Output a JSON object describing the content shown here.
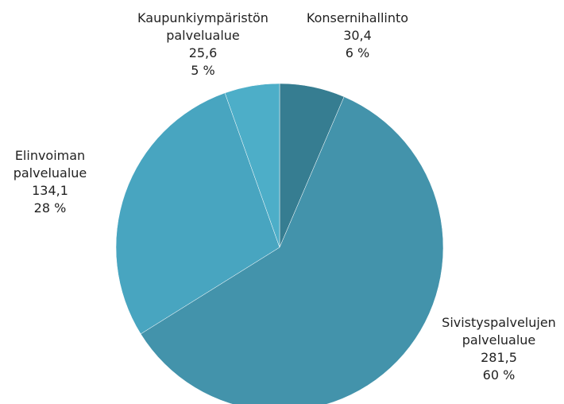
{
  "chart_data": {
    "type": "pie",
    "categories": [
      "Konsernihallinto",
      "Sivistyspalvelujen palvelualue",
      "Elinvoiman palvelualue",
      "Kaupunkiympäristön palvelualue"
    ],
    "values": [
      30.4,
      281.5,
      134.1,
      25.6
    ],
    "value_labels": [
      "30,4",
      "281,5",
      "134,1",
      "25,6"
    ],
    "percents": [
      6,
      60,
      28,
      5
    ],
    "percent_labels": [
      "6 %",
      "60 %",
      "28 %",
      "5 %"
    ],
    "colors": [
      "#367d91",
      "#4393ab",
      "#48a5c0",
      "#4daec8"
    ]
  }
}
